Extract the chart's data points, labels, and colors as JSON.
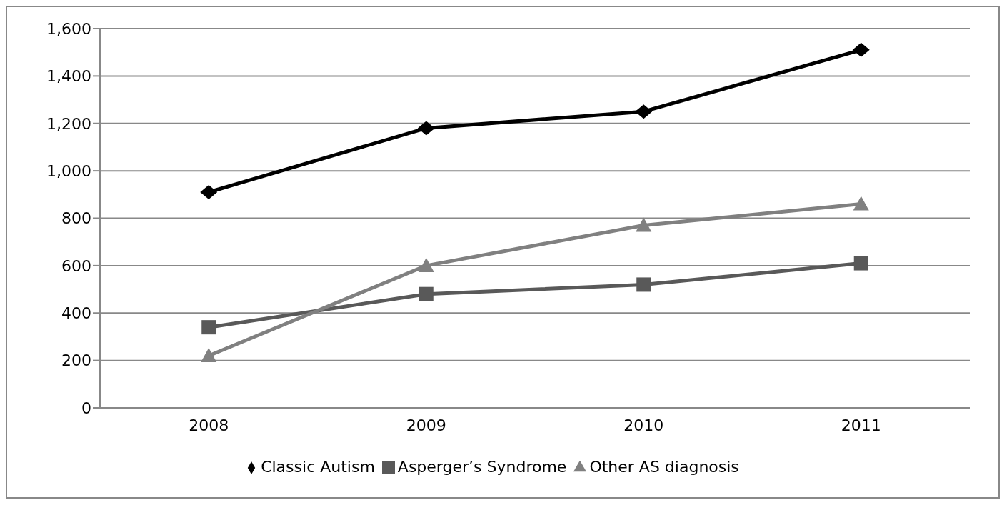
{
  "chart_data": {
    "type": "line",
    "categories": [
      "2008",
      "2009",
      "2010",
      "2011"
    ],
    "series": [
      {
        "name": "Classic Autism",
        "color": "#000000",
        "marker": "diamond",
        "values": [
          910,
          1180,
          1250,
          1510
        ]
      },
      {
        "name": "Asperger’s Syndrome",
        "color": "#595959",
        "marker": "square",
        "values": [
          340,
          480,
          520,
          610
        ]
      },
      {
        "name": "Other AS diagnosis",
        "color": "#808080",
        "marker": "triangle",
        "values": [
          220,
          600,
          770,
          860
        ]
      }
    ],
    "ylim": [
      0,
      1600
    ],
    "yticks": [
      {
        "value": 0,
        "label": "0"
      },
      {
        "value": 200,
        "label": "200"
      },
      {
        "value": 400,
        "label": "400"
      },
      {
        "value": 600,
        "label": "600"
      },
      {
        "value": 800,
        "label": "800"
      },
      {
        "value": 1000,
        "label": "1,000"
      },
      {
        "value": 1200,
        "label": "1,200"
      },
      {
        "value": 1400,
        "label": "1,400"
      },
      {
        "value": 1600,
        "label": "1,600"
      }
    ],
    "grid": "y",
    "legend": "bottom",
    "line_style": "solid"
  }
}
